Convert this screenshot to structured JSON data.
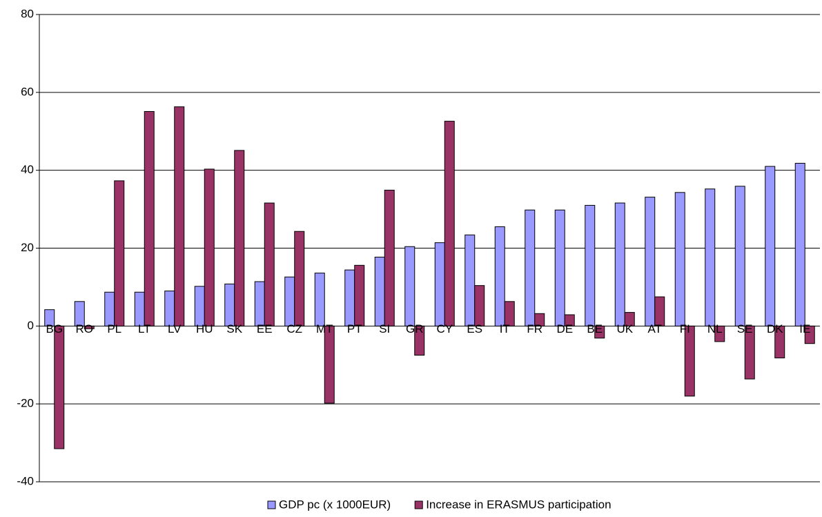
{
  "chart_data": {
    "type": "bar",
    "categories": [
      "BG",
      "RO",
      "PL",
      "LT",
      "LV",
      "HU",
      "SK",
      "EE",
      "CZ",
      "MT",
      "PT",
      "SI",
      "GR",
      "CY",
      "ES",
      "IT",
      "FR",
      "DE",
      "BE",
      "UK",
      "AT",
      "FI",
      "NL",
      "SE",
      "DK",
      "IE"
    ],
    "series": [
      {
        "name": "GDP pc (x 1000EUR)",
        "color": "#9999ff",
        "values": [
          4.2,
          6.3,
          8.7,
          8.7,
          9,
          10.2,
          10.8,
          11.4,
          12.6,
          13.6,
          14.4,
          17.7,
          20.4,
          21.4,
          23.4,
          25.5,
          29.8,
          29.8,
          31,
          31.6,
          33.1,
          34.3,
          35.2,
          35.9,
          41,
          41.8
        ]
      },
      {
        "name": "Increase in ERASMUS participation",
        "color": "#993366",
        "values": [
          -31.5,
          -0.7,
          37.3,
          55.1,
          56.3,
          40.3,
          45.1,
          31.6,
          24.3,
          -19.8,
          15.6,
          34.9,
          -7.5,
          52.6,
          10.4,
          6.3,
          3.2,
          2.9,
          -3.1,
          3.5,
          7.5,
          -18,
          -4,
          -13.6,
          -8.2,
          -4.5
        ]
      }
    ],
    "ylim": [
      -40,
      80
    ],
    "yticks": [
      -40,
      -20,
      0,
      20,
      40,
      60,
      80
    ],
    "grid": true,
    "legend": "bottom"
  }
}
